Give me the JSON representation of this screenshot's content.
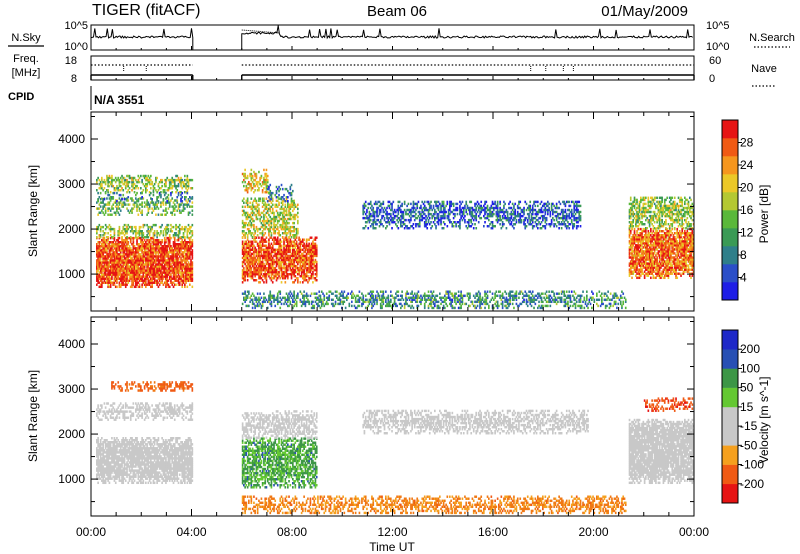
{
  "header": {
    "title": "TIGER (fitACF)",
    "beam": "Beam 06",
    "date": "01/May/2009"
  },
  "top_panels": {
    "nsky_label": "N.Sky",
    "nsearch_label": "N.Search",
    "count_ticks": [
      "10^5",
      "10^0"
    ],
    "freq_label": "Freq.",
    "freq_unit": "[MHz]",
    "freq_ticks": [
      "18",
      "8"
    ],
    "nave_label": "Nave",
    "nave_ticks": [
      "60",
      "0"
    ],
    "cpid_label": "CPID",
    "cpid_value": "N/A 3551"
  },
  "x_axis": {
    "label": "Time UT",
    "range_hours": [
      0,
      24
    ],
    "ticks": [
      {
        "hour": 0,
        "label": "00:00"
      },
      {
        "hour": 4,
        "label": "04:00"
      },
      {
        "hour": 8,
        "label": "08:00"
      },
      {
        "hour": 12,
        "label": "12:00"
      },
      {
        "hour": 16,
        "label": "16:00"
      },
      {
        "hour": 20,
        "label": "20:00"
      },
      {
        "hour": 24,
        "label": "00:00"
      }
    ]
  },
  "chart_data": [
    {
      "type": "heatmap",
      "name": "power",
      "ylabel": "Slant Range [km]",
      "ylim": [
        180,
        4600
      ],
      "yticks": [
        1000,
        2000,
        3000,
        4000
      ],
      "colorbar": {
        "label": "Power [dB]",
        "min": 0,
        "max": 32,
        "ticks": [
          4,
          8,
          12,
          16,
          20,
          24,
          28
        ],
        "colors": [
          "#1e1ee6",
          "#2b4fc8",
          "#2f7f8a",
          "#3a9a55",
          "#5ab83a",
          "#b4c832",
          "#ebc828",
          "#f5961e",
          "#f05a14",
          "#e61414"
        ]
      },
      "gaps_hours": [
        [
          4.1,
          6.0
        ],
        [
          21.4,
          21.4
        ]
      ],
      "regions": [
        {
          "t0": 0.2,
          "t1": 4.0,
          "r0": 700,
          "r1": 1800,
          "level": 28,
          "density": 0.9
        },
        {
          "t0": 0.2,
          "t1": 4.0,
          "r0": 1800,
          "r1": 2100,
          "level": 16,
          "density": 0.6
        },
        {
          "t0": 0.2,
          "t1": 4.0,
          "r0": 2300,
          "r1": 2700,
          "level": 14,
          "density": 0.5
        },
        {
          "t0": 0.2,
          "t1": 4.0,
          "r0": 2800,
          "r1": 3200,
          "level": 16,
          "density": 0.55
        },
        {
          "t0": 0.2,
          "t1": 4.0,
          "r0": 2600,
          "r1": 2800,
          "level": 8,
          "density": 0.3
        },
        {
          "t0": 6.0,
          "t1": 9.0,
          "r0": 800,
          "r1": 1800,
          "level": 28,
          "density": 0.8
        },
        {
          "t0": 6.0,
          "t1": 8.2,
          "r0": 1800,
          "r1": 2700,
          "level": 18,
          "density": 0.55
        },
        {
          "t0": 6.0,
          "t1": 7.0,
          "r0": 2800,
          "r1": 3300,
          "level": 20,
          "density": 0.55
        },
        {
          "t0": 7.0,
          "t1": 8.0,
          "r0": 2600,
          "r1": 3000,
          "level": 8,
          "density": 0.35
        },
        {
          "t0": 10.8,
          "t1": 19.5,
          "r0": 2000,
          "r1": 2600,
          "level": 6,
          "density": 0.55
        },
        {
          "t0": 6.0,
          "t1": 21.3,
          "r0": 230,
          "r1": 600,
          "level": 10,
          "density": 0.55
        },
        {
          "t0": 21.4,
          "t1": 24.0,
          "r0": 900,
          "r1": 2000,
          "level": 26,
          "density": 0.85
        },
        {
          "t0": 21.4,
          "t1": 24.0,
          "r0": 2000,
          "r1": 2700,
          "level": 16,
          "density": 0.6
        }
      ]
    },
    {
      "type": "heatmap",
      "name": "velocity",
      "ylabel": "Slant Range [km]",
      "ylim": [
        180,
        4600
      ],
      "yticks": [
        1000,
        2000,
        3000,
        4000
      ],
      "colorbar": {
        "label": "Velocity [m s^-1]",
        "min": -250,
        "max": 250,
        "ticks": [
          200,
          100,
          50,
          15,
          -15,
          -50,
          -100,
          -200
        ],
        "colors": [
          "#e61414",
          "#f05a14",
          "#f5a01e",
          "#c8c8c8",
          "#c8c8c8",
          "#64c832",
          "#3c9646",
          "#2850b4",
          "#1e28c8"
        ]
      },
      "regions": [
        {
          "t0": 0.2,
          "t1": 4.0,
          "r0": 900,
          "r1": 1900,
          "level": 0,
          "density": 0.85
        },
        {
          "t0": 0.2,
          "t1": 4.0,
          "r0": 2300,
          "r1": 2700,
          "level": 0,
          "density": 0.6
        },
        {
          "t0": 0.8,
          "t1": 4.0,
          "r0": 2950,
          "r1": 3150,
          "level": -120,
          "density": 0.7
        },
        {
          "t0": 6.0,
          "t1": 9.0,
          "r0": 800,
          "r1": 1900,
          "level": 60,
          "density": 0.65
        },
        {
          "t0": 6.0,
          "t1": 9.0,
          "r0": 1900,
          "r1": 2500,
          "level": 0,
          "density": 0.6
        },
        {
          "t0": 10.8,
          "t1": 19.8,
          "r0": 2000,
          "r1": 2500,
          "level": 0,
          "density": 0.6
        },
        {
          "t0": 6.0,
          "t1": 21.3,
          "r0": 230,
          "r1": 600,
          "level": -60,
          "density": 0.6
        },
        {
          "t0": 21.4,
          "t1": 24.0,
          "r0": 900,
          "r1": 2300,
          "level": 0,
          "density": 0.85
        },
        {
          "t0": 22.0,
          "t1": 24.0,
          "r0": 2500,
          "r1": 2800,
          "level": -180,
          "density": 0.5
        }
      ]
    }
  ]
}
